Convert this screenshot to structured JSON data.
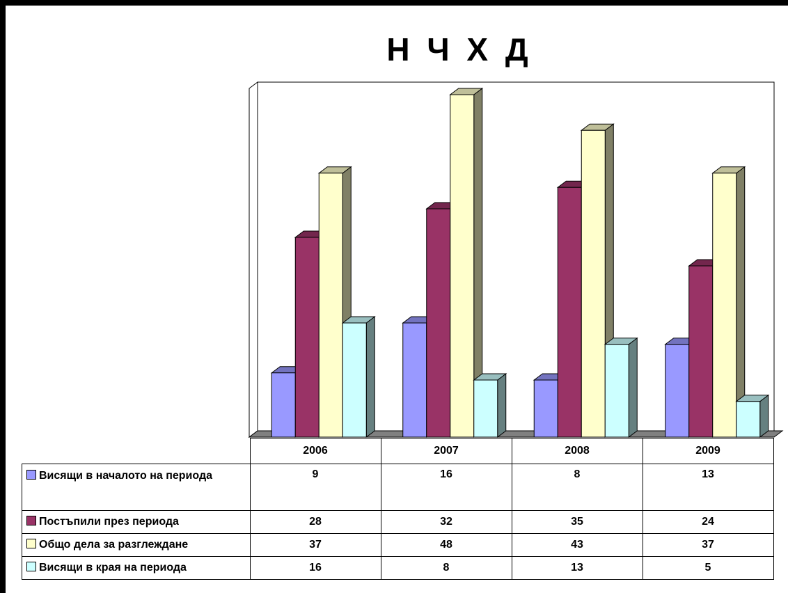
{
  "chart_data": {
    "type": "bar",
    "title": "Н Ч Х Д",
    "categories": [
      "2006",
      "2007",
      "2008",
      "2009"
    ],
    "series": [
      {
        "name": "Висящи в началото на периода",
        "values": [
          9,
          16,
          8,
          13
        ],
        "color": "#9999FF"
      },
      {
        "name": "Постъпили през периода",
        "values": [
          28,
          32,
          35,
          24
        ],
        "color": "#993366"
      },
      {
        "name": "Общо дела за разглеждане",
        "values": [
          37,
          48,
          43,
          37
        ],
        "color": "#FFFFCC"
      },
      {
        "name": "Висящи в края на периода",
        "values": [
          16,
          8,
          13,
          5
        ],
        "color": "#CCFFFF"
      }
    ],
    "ylim": [
      0,
      50
    ],
    "grid": false,
    "legend": "data-table-below"
  }
}
